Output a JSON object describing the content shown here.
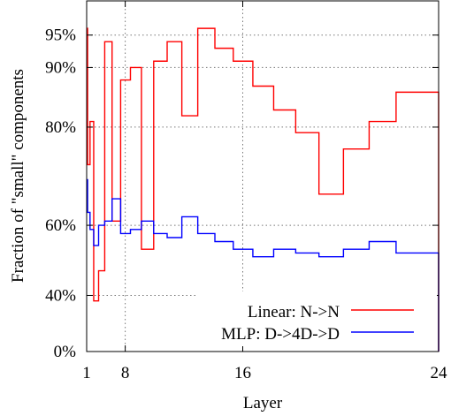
{
  "chart_data": {
    "type": "line",
    "step": true,
    "xlabel": "Layer",
    "ylabel": "Fraction of \"small\" components",
    "xlim": [
      1,
      24
    ],
    "ylim": [
      0,
      100
    ],
    "x_scale": "squared",
    "y_scale": "squared",
    "grid": true,
    "legend_position": "bottom-right",
    "x_ticks": [
      {
        "value": 1,
        "label": "1"
      },
      {
        "value": 8,
        "label": "8"
      },
      {
        "value": 16,
        "label": "16"
      },
      {
        "value": 24,
        "label": "24"
      }
    ],
    "y_ticks": [
      {
        "value": 0,
        "label": "0%"
      },
      {
        "value": 40,
        "label": "40%"
      },
      {
        "value": 60,
        "label": "60%"
      },
      {
        "value": 80,
        "label": "80%"
      },
      {
        "value": 90,
        "label": "90%"
      },
      {
        "value": 95,
        "label": "95%"
      }
    ],
    "x": [
      1,
      2,
      3,
      4,
      5,
      6,
      7,
      8,
      9,
      10,
      11,
      12,
      13,
      14,
      15,
      16,
      17,
      18,
      19,
      20,
      21,
      22,
      23,
      24
    ],
    "series": [
      {
        "name": "Linear: N->N",
        "color": "#ff0000",
        "values": [
          96,
          73,
          81,
          38,
          48,
          94,
          61,
          88,
          90,
          54,
          91,
          94,
          82,
          96,
          93,
          91,
          87,
          83,
          79,
          67,
          76,
          81,
          86,
          86
        ]
      },
      {
        "name": "MLP: D->4D->D",
        "color": "#0000ff",
        "values": [
          70,
          63,
          59,
          55,
          60,
          61,
          66,
          58,
          59,
          61,
          58,
          57,
          62,
          58,
          56,
          54,
          52,
          54,
          53,
          52,
          54,
          56,
          53,
          53
        ]
      }
    ]
  }
}
